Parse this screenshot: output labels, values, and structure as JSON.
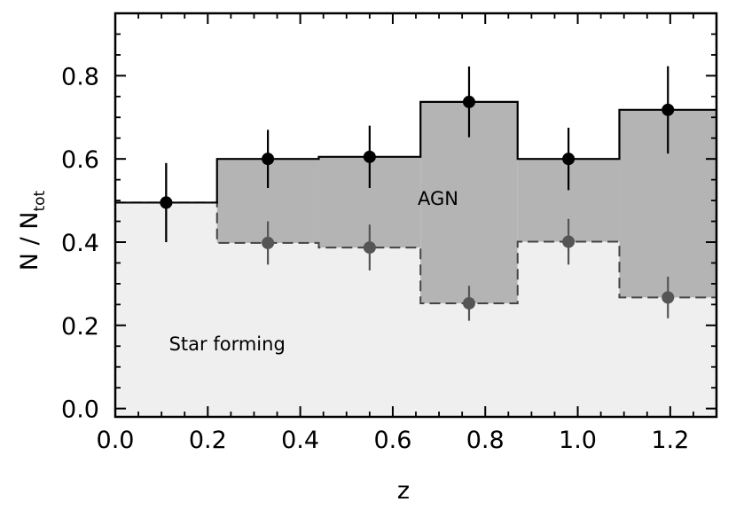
{
  "chart_data": {
    "type": "bar",
    "xlabel": "z",
    "ylabel": {
      "main": "N  /  N",
      "subscript": "tot"
    },
    "xlim": [
      0.0,
      1.3
    ],
    "ylim": [
      -0.02,
      0.95
    ],
    "xticks": [
      "0.0",
      "0.2",
      "0.4",
      "0.6",
      "0.8",
      "1.0",
      "1.2"
    ],
    "yticks": [
      "0.0",
      "0.2",
      "0.4",
      "0.6",
      "0.8"
    ],
    "bin_edges": [
      0.0,
      0.22,
      0.44,
      0.66,
      0.87,
      1.09,
      1.3
    ],
    "series": [
      {
        "name": "AGN",
        "style": "solid step, dark gray fill",
        "fill": "#b4b4b4",
        "marker_color": "#000000",
        "x": [
          0.11,
          0.33,
          0.55,
          0.765,
          0.98,
          1.195
        ],
        "values": [
          0.495,
          0.6,
          0.605,
          0.737,
          0.6,
          0.718
        ],
        "error": [
          0.095,
          0.07,
          0.075,
          0.085,
          0.075,
          0.105
        ]
      },
      {
        "name": "Star forming",
        "style": "dashed step, light gray fill",
        "fill": "#efefef",
        "marker_color": "#555555",
        "x": [
          0.11,
          0.33,
          0.55,
          0.765,
          0.98,
          1.195
        ],
        "values": [
          0.495,
          0.398,
          0.387,
          0.253,
          0.401,
          0.267
        ],
        "error": [
          0.095,
          0.052,
          0.055,
          0.042,
          0.055,
          0.05
        ]
      }
    ],
    "annotations": [
      {
        "text": "AGN",
        "x": 0.765,
        "y": 0.49
      },
      {
        "text": "Star forming",
        "x": 0.52,
        "y": 0.14
      }
    ]
  }
}
